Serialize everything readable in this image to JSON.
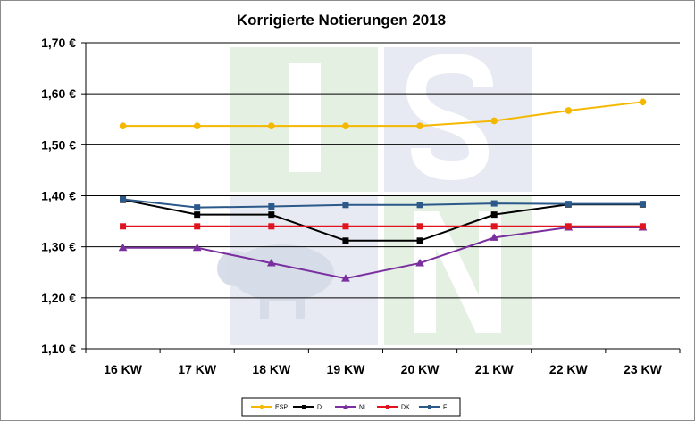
{
  "chart_data": {
    "type": "line",
    "title": "Korrigierte Notierungen 2018",
    "xlabel": "",
    "ylabel": "",
    "categories": [
      "16 KW",
      "17 KW",
      "18 KW",
      "19 KW",
      "20 KW",
      "21 KW",
      "22 KW",
      "23 KW"
    ],
    "ylim": [
      1.1,
      1.7
    ],
    "yticks": [
      1.1,
      1.2,
      1.3,
      1.4,
      1.5,
      1.6,
      1.7
    ],
    "ytick_labels": [
      "1,10 €",
      "1,20 €",
      "1,30 €",
      "1,40 €",
      "1,50 €",
      "1,60 €",
      "1,70 €"
    ],
    "grid": "horizontal",
    "legend_position": "bottom",
    "watermark_text": "ISN",
    "series": [
      {
        "name": "ESP",
        "color": "#f5b800",
        "marker": "circle",
        "values": [
          1.537,
          1.537,
          1.537,
          1.537,
          1.537,
          1.547,
          1.567,
          1.584
        ]
      },
      {
        "name": "D",
        "color": "#000000",
        "marker": "square",
        "values": [
          1.392,
          1.363,
          1.363,
          1.312,
          1.312,
          1.363,
          1.383,
          1.383
        ]
      },
      {
        "name": "NL",
        "color": "#7a2f9e",
        "marker": "triangle",
        "values": [
          1.298,
          1.298,
          1.268,
          1.238,
          1.268,
          1.318,
          1.338,
          1.338
        ]
      },
      {
        "name": "DK",
        "color": "#e0141e",
        "marker": "square",
        "values": [
          1.34,
          1.34,
          1.34,
          1.34,
          1.34,
          1.34,
          1.34,
          1.34
        ]
      },
      {
        "name": "F",
        "color": "#2b5a8a",
        "marker": "square",
        "values": [
          1.393,
          1.377,
          1.379,
          1.382,
          1.382,
          1.385,
          1.384,
          1.384
        ]
      }
    ]
  }
}
